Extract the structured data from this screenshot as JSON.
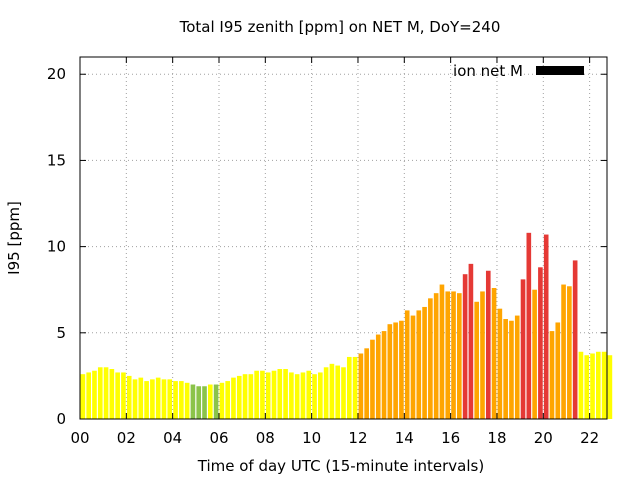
{
  "chart_data": {
    "type": "bar",
    "title": "Total I95 zenith [ppm] on NET M, DoY=240",
    "xlabel": "Time of day UTC (15-minute intervals)",
    "ylabel": "I95 [ppm]",
    "ylim": [
      0,
      21
    ],
    "xlim": [
      0,
      22.75
    ],
    "yticks": [
      0,
      5,
      10,
      15,
      20
    ],
    "xticks": [
      {
        "value": 0,
        "label": "00"
      },
      {
        "value": 2,
        "label": "02"
      },
      {
        "value": 4,
        "label": "04"
      },
      {
        "value": 6,
        "label": "06"
      },
      {
        "value": 8,
        "label": "08"
      },
      {
        "value": 10,
        "label": "10"
      },
      {
        "value": 12,
        "label": "12"
      },
      {
        "value": 14,
        "label": "14"
      },
      {
        "value": 16,
        "label": "16"
      },
      {
        "value": 18,
        "label": "18"
      },
      {
        "value": 20,
        "label": "20"
      },
      {
        "value": 22,
        "label": "22"
      }
    ],
    "grid": true,
    "legend": {
      "label": "ion net M",
      "color": "#000000",
      "position": "top-right"
    },
    "interval_hours": 0.25,
    "bar_colors": {
      "yellow": "#ffff00",
      "green": "#8bc34a",
      "orange": "#ffa500",
      "red": "#e53935"
    },
    "series": [
      {
        "values": [
          2.6,
          2.7,
          2.8,
          3.0,
          3.0,
          2.9,
          2.7,
          2.7,
          2.5,
          2.3,
          2.4,
          2.2,
          2.3,
          2.4,
          2.3,
          2.3,
          2.2,
          2.2,
          2.1,
          2.0,
          1.9,
          1.9,
          2.0,
          2.0,
          2.1,
          2.2,
          2.4,
          2.5,
          2.6,
          2.6,
          2.8,
          2.8,
          2.7,
          2.8,
          2.9,
          2.9,
          2.7,
          2.6,
          2.7,
          2.8,
          2.6,
          2.7,
          3.0,
          3.2,
          3.1,
          3.0,
          3.6,
          3.6,
          3.8,
          4.1,
          4.6,
          4.9,
          5.1,
          5.5,
          5.6,
          5.7,
          6.3,
          6.0,
          6.3,
          6.5,
          7.0,
          7.3,
          7.8,
          7.4,
          7.4,
          7.3,
          8.4,
          9.0,
          6.8,
          7.4,
          8.6,
          7.6,
          6.4,
          5.8,
          5.7,
          6.0,
          8.1,
          10.8,
          7.5,
          8.8,
          10.7,
          5.1,
          5.6,
          7.8,
          7.7,
          9.2,
          3.9,
          3.7,
          3.8,
          3.9,
          3.9,
          3.7
        ],
        "colors": [
          "yellow",
          "yellow",
          "yellow",
          "yellow",
          "yellow",
          "yellow",
          "yellow",
          "yellow",
          "yellow",
          "yellow",
          "yellow",
          "yellow",
          "yellow",
          "yellow",
          "yellow",
          "yellow",
          "yellow",
          "yellow",
          "yellow",
          "green",
          "green",
          "green",
          "yellow",
          "green",
          "yellow",
          "yellow",
          "yellow",
          "yellow",
          "yellow",
          "yellow",
          "yellow",
          "yellow",
          "yellow",
          "yellow",
          "yellow",
          "yellow",
          "yellow",
          "yellow",
          "yellow",
          "yellow",
          "yellow",
          "yellow",
          "yellow",
          "yellow",
          "yellow",
          "yellow",
          "yellow",
          "yellow",
          "orange",
          "orange",
          "orange",
          "orange",
          "orange",
          "orange",
          "orange",
          "orange",
          "orange",
          "orange",
          "orange",
          "orange",
          "orange",
          "orange",
          "orange",
          "orange",
          "orange",
          "orange",
          "red",
          "red",
          "orange",
          "orange",
          "red",
          "orange",
          "orange",
          "orange",
          "orange",
          "orange",
          "red",
          "red",
          "orange",
          "red",
          "red",
          "orange",
          "orange",
          "orange",
          "orange",
          "red",
          "yellow",
          "yellow",
          "yellow",
          "yellow",
          "yellow",
          "yellow"
        ]
      }
    ]
  }
}
